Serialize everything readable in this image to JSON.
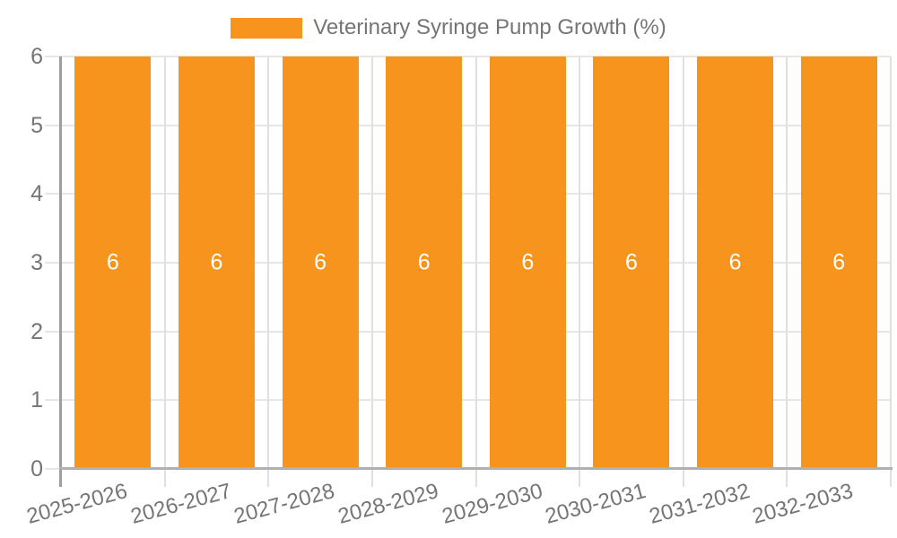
{
  "chart_data": {
    "type": "bar",
    "title": "Veterinary Syringe Pump Growth (%)",
    "categories": [
      "2025-2026",
      "2026-2027",
      "2027-2028",
      "2028-2029",
      "2029-2030",
      "2030-2031",
      "2031-2032",
      "2032-2033"
    ],
    "series": [
      {
        "name": "Veterinary Syringe Pump Growth (%)",
        "values": [
          6,
          6,
          6,
          6,
          6,
          6,
          6,
          6
        ],
        "color": "#F7941E"
      }
    ],
    "bar_value_labels": [
      "6",
      "6",
      "6",
      "6",
      "6",
      "6",
      "6",
      "6"
    ],
    "xlabel": "",
    "ylabel": "",
    "ylim": [
      0,
      6
    ],
    "y_ticks": [
      0,
      1,
      2,
      3,
      4,
      5,
      6
    ],
    "grid": true,
    "legend_position": "top",
    "colors": {
      "bar": "#F7941E",
      "grid_horizontal": "#e6e6e6",
      "grid_vertical": "#e0e0e0",
      "y_axis_line": "#9e9e9e",
      "x_axis_line": "#b0b0b0",
      "tick_label": "#757575",
      "bar_label": "#ffffff",
      "background": "#ffffff"
    }
  }
}
